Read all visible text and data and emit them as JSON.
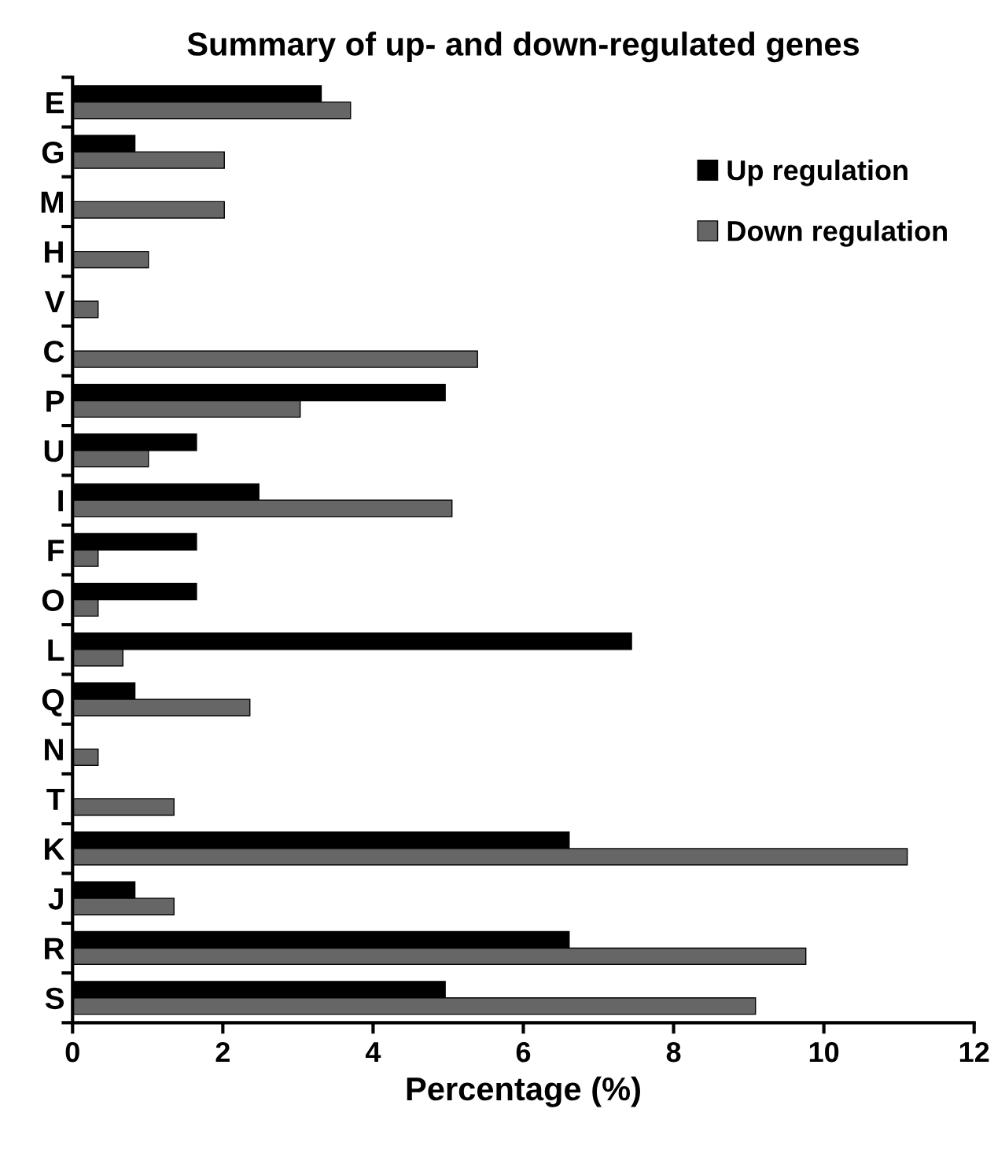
{
  "chart_data": {
    "type": "bar",
    "orientation": "horizontal",
    "title": "Summary of up- and down-regulated genes",
    "xlabel": "Percentage (%)",
    "categories": [
      "E",
      "G",
      "M",
      "H",
      "V",
      "C",
      "P",
      "U",
      "I",
      "F",
      "O",
      "L",
      "Q",
      "N",
      "T",
      "K",
      "J",
      "R",
      "S"
    ],
    "series": [
      {
        "name": "Up regulation",
        "color": "#000000",
        "values": [
          3.31,
          0.83,
          0,
          0,
          0,
          0,
          4.96,
          1.65,
          2.48,
          1.65,
          1.65,
          7.44,
          0.83,
          0,
          0,
          6.61,
          0.83,
          6.61,
          4.96
        ]
      },
      {
        "name": "Down regulation",
        "color": "#666666",
        "values": [
          3.7,
          2.02,
          2.02,
          1.01,
          0.34,
          5.39,
          3.03,
          1.01,
          5.05,
          0.34,
          0.34,
          0.67,
          2.36,
          0.34,
          1.35,
          11.11,
          1.35,
          9.76,
          9.09
        ]
      }
    ],
    "xlim": [
      0,
      12
    ],
    "xticks": [
      0,
      2,
      4,
      6,
      8,
      10,
      12
    ],
    "grid": false,
    "legend": "top right"
  }
}
